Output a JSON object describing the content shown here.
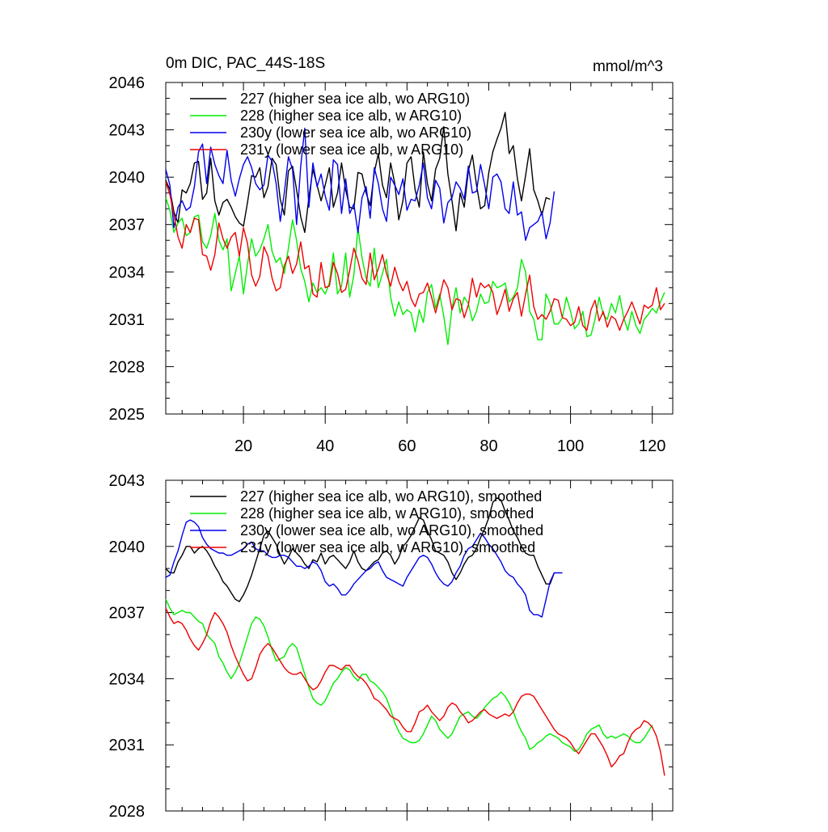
{
  "chart_data": [
    {
      "type": "line",
      "title": "0m DIC, PAC_44S-18S",
      "units": "mmol/m^3",
      "xlim": [
        1,
        125
      ],
      "ylim": [
        2025,
        2046
      ],
      "x_ticks": [
        20,
        40,
        60,
        80,
        100,
        120
      ],
      "y_ticks": [
        2025,
        2028,
        2031,
        2034,
        2037,
        2040,
        2043,
        2046
      ],
      "show_x_labels": true,
      "legend_position": "top-left",
      "series": [
        {
          "name": "227 (higher sea ice alb, wo ARG10)",
          "color": "#000000",
          "values": [
            2039.8,
            2039.2,
            2037.8,
            2037.1,
            2039.2,
            2039.0,
            2039.6,
            2040.9,
            2041.0,
            2038.6,
            2039.0,
            2041.2,
            2038.5,
            2037.6,
            2038.4,
            2038.6,
            2038.1,
            2037.5,
            2037.1,
            2036.9,
            2038.4,
            2040.1,
            2040.0,
            2040.6,
            2038.7,
            2039.4,
            2041.2,
            2040.8,
            2038.6,
            2037.6,
            2040.4,
            2040.7,
            2039.2,
            2037.5,
            2036.5,
            2038.7,
            2040.5,
            2039.5,
            2038.5,
            2039.5,
            2040.6,
            2038.1,
            2039.0,
            2040.9,
            2039.2,
            2038.1,
            2038.0,
            2040.3,
            2040.2,
            2039.0,
            2038.2,
            2040.3,
            2041.5,
            2039.5,
            2038.7,
            2040.9,
            2039.6,
            2037.3,
            2038.5,
            2040.9,
            2041.3,
            2039.2,
            2038.1,
            2041.6,
            2039.6,
            2038.5,
            2040.5,
            2041.2,
            2043.2,
            2040.2,
            2038.5,
            2036.6,
            2039.0,
            2038.1,
            2040.4,
            2041.4,
            2039.5,
            2038.0,
            2038.2,
            2040.3,
            2041.6,
            2042.4,
            2043.1,
            2044.1,
            2041.5,
            2042.0,
            2039.9,
            2038.5,
            2040.1,
            2041.8,
            2039.2,
            2038.5,
            2037.6,
            2038.7,
            2038.6
          ]
        },
        {
          "name": "228 (higher sea ice alb, w ARG10)",
          "color": "#00ee00",
          "values": [
            2038.7,
            2037.9,
            2036.5,
            2037.1,
            2037.4,
            2036.3,
            2036.5,
            2037.5,
            2037.6,
            2035.9,
            2035.5,
            2036.3,
            2037.7,
            2036.0,
            2035.4,
            2036.1,
            2032.8,
            2033.9,
            2035.0,
            2032.6,
            2034.5,
            2036.1,
            2035.0,
            2035.4,
            2036.1,
            2037.0,
            2035.3,
            2034.6,
            2034.9,
            2033.9,
            2035.5,
            2037.3,
            2036.0,
            2034.2,
            2033.4,
            2032.1,
            2033.3,
            2032.7,
            2033.0,
            2032.6,
            2033.3,
            2035.2,
            2032.6,
            2033.1,
            2035.2,
            2032.4,
            2033.8,
            2036.8,
            2034.9,
            2033.6,
            2033.1,
            2035.5,
            2033.0,
            2033.9,
            2034.8,
            2032.4,
            2031.2,
            2032.1,
            2031.3,
            2031.6,
            2031.4,
            2030.2,
            2031.6,
            2030.8,
            2032.7,
            2033.2,
            2031.7,
            2032.6,
            2031.2,
            2029.4,
            2031.7,
            2033.0,
            2031.4,
            2032.4,
            2032.0,
            2030.9,
            2031.5,
            2032.6,
            2032.0,
            2032.1,
            2033.4,
            2033.0,
            2033.1,
            2033.3,
            2032.1,
            2032.4,
            2033.0,
            2034.8,
            2034.0,
            2031.5,
            2031.0,
            2029.7,
            2029.7,
            2032.6,
            2032.0,
            2030.7,
            2030.7,
            2031.1,
            2032.4,
            2031.5,
            2030.4,
            2030.7,
            2031.5,
            2029.9,
            2030.0,
            2031.0,
            2032.4,
            2031.3,
            2031.0,
            2032.0,
            2031.4,
            2032.5,
            2031.1,
            2030.3,
            2031.5,
            2030.6,
            2030.1,
            2031.0,
            2031.3,
            2031.7,
            2031.4,
            2032.1,
            2032.7
          ]
        },
        {
          "name": "230y (lower sea ice alb, wo ARG10)",
          "color": "#0000ee",
          "values": [
            2040.5,
            2039.5,
            2036.8,
            2038.1,
            2038.5,
            2037.9,
            2038.1,
            2039.4,
            2041.6,
            2042.1,
            2039.6,
            2041.9,
            2040.8,
            2040.1,
            2039.6,
            2041.7,
            2039.8,
            2038.8,
            2039.9,
            2040.8,
            2041.3,
            2040.6,
            2039.6,
            2039.2,
            2039.5,
            2041.4,
            2041.0,
            2039.6,
            2037.2,
            2039.0,
            2041.3,
            2040.5,
            2037.0,
            2040.7,
            2043.1,
            2038.1,
            2040.9,
            2039.4,
            2040.2,
            2038.8,
            2037.9,
            2041.1,
            2040.8,
            2037.7,
            2039.9,
            2037.7,
            2038.3,
            2036.5,
            2038.7,
            2039.4,
            2037.4,
            2040.6,
            2039.6,
            2038.0,
            2037.2,
            2040.0,
            2039.5,
            2038.9,
            2039.9,
            2037.9,
            2038.6,
            2038.5,
            2039.5,
            2040.9,
            2038.7,
            2038.0,
            2039.8,
            2039.3,
            2037.1,
            2038.4,
            2038.7,
            2039.7,
            2039.3,
            2038.6,
            2040.7,
            2039.0,
            2039.1,
            2040.8,
            2039.5,
            2038.0,
            2040.0,
            2040.2,
            2039.7,
            2038.0,
            2037.7,
            2039.7,
            2037.6,
            2037.8,
            2036.0,
            2036.8,
            2037.0,
            2037.2,
            2037.8,
            2036.1,
            2037.1,
            2039.1
          ]
        },
        {
          "name": "231y (lower sea ice alb, w ARG10)",
          "color": "#ee0000",
          "values": [
            2039.7,
            2038.9,
            2037.6,
            2036.2,
            2035.5,
            2037.0,
            2036.5,
            2037.4,
            2037.3,
            2035.1,
            2035.0,
            2034.1,
            2035.1,
            2037.1,
            2036.1,
            2035.5,
            2036.2,
            2036.5,
            2035.0,
            2036.8,
            2035.8,
            2033.8,
            2033.1,
            2033.7,
            2035.6,
            2035.0,
            2033.6,
            2032.8,
            2033.0,
            2034.4,
            2035.0,
            2033.9,
            2034.5,
            2035.9,
            2034.2,
            2034.4,
            2032.6,
            2032.4,
            2034.6,
            2033.0,
            2033.1,
            2034.6,
            2033.9,
            2032.7,
            2032.9,
            2034.1,
            2035.5,
            2034.7,
            2033.6,
            2033.2,
            2035.2,
            2033.5,
            2034.2,
            2035.1,
            2033.9,
            2033.1,
            2034.3,
            2033.4,
            2032.8,
            2033.4,
            2032.3,
            2031.8,
            2032.6,
            2032.7,
            2033.3,
            2032.4,
            2031.4,
            2032.4,
            2033.5,
            2033.0,
            2031.6,
            2032.3,
            2032.2,
            2031.1,
            2031.9,
            2033.6,
            2032.4,
            2033.3,
            2033.0,
            2033.2,
            2032.7,
            2031.3,
            2032.0,
            2032.9,
            2031.5,
            2032.3,
            2032.7,
            2031.2,
            2032.6,
            2033.8,
            2031.8,
            2031.0,
            2031.3,
            2031.0,
            2031.5,
            2032.3,
            2032.2,
            2031.1,
            2031.0,
            2030.6,
            2030.8,
            2031.8,
            2030.6,
            2030.3,
            2031.6,
            2032.2,
            2030.9,
            2031.5,
            2030.5,
            2031.2,
            2031.0,
            2030.3,
            2031.0,
            2031.5,
            2032.1,
            2031.4,
            2030.7,
            2031.9,
            2031.7,
            2031.9,
            2033.0,
            2031.6,
            2032.0
          ]
        }
      ]
    },
    {
      "type": "line",
      "title": "",
      "units": "",
      "xlim": [
        1,
        125
      ],
      "ylim": [
        2028,
        2043
      ],
      "x_ticks": [
        20,
        40,
        60,
        80,
        100,
        120
      ],
      "y_ticks": [
        2028,
        2031,
        2034,
        2037,
        2040,
        2043
      ],
      "show_x_labels": false,
      "legend_position": "top-left",
      "series": [
        {
          "name": "227 (higher sea ice alb, wo ARG10), smoothed",
          "color": "#000000",
          "values": [
            2039.0,
            2038.8,
            2038.8,
            2039.3,
            2039.6,
            2040.0,
            2040.0,
            2039.7,
            2039.9,
            2040.0,
            2039.8,
            2039.5,
            2039.1,
            2038.8,
            2038.4,
            2038.2,
            2037.9,
            2037.6,
            2037.5,
            2037.8,
            2038.2,
            2038.7,
            2039.3,
            2039.9,
            2040.5,
            2040.7,
            2040.4,
            2040.1,
            2039.6,
            2039.2,
            2039.5,
            2039.9,
            2039.7,
            2039.5,
            2039.2,
            2039.0,
            2039.4,
            2039.3,
            2039.7,
            2039.2,
            2039.5,
            2039.6,
            2039.4,
            2039.2,
            2039.0,
            2039.3,
            2039.8,
            2039.3,
            2039.0,
            2038.9,
            2039.1,
            2039.3,
            2039.4,
            2039.7,
            2039.8,
            2039.6,
            2039.2,
            2039.5,
            2040.0,
            2040.2,
            2040.5,
            2040.9,
            2041.3,
            2041.2,
            2040.7,
            2040.3,
            2039.8,
            2039.7,
            2039.6,
            2039.3,
            2038.8,
            2038.5,
            2038.8,
            2039.2,
            2039.5,
            2039.6,
            2039.9,
            2040.4,
            2040.8,
            2041.3,
            2042.0,
            2042.2,
            2042.1,
            2041.6,
            2041.2,
            2040.7,
            2040.4,
            2040.0,
            2039.7,
            2039.6,
            2039.6,
            2039.1,
            2038.7,
            2038.3,
            2038.3,
            2038.8
          ]
        },
        {
          "name": "228 (higher sea ice alb, w ARG10), smoothed",
          "color": "#00ee00",
          "values": [
            2037.6,
            2037.2,
            2036.9,
            2037.0,
            2037.1,
            2037.0,
            2037.0,
            2036.8,
            2036.6,
            2036.5,
            2036.0,
            2035.8,
            2035.6,
            2035.0,
            2034.7,
            2034.3,
            2034.0,
            2034.3,
            2034.7,
            2035.3,
            2035.9,
            2036.5,
            2036.8,
            2036.7,
            2036.4,
            2035.9,
            2035.3,
            2034.8,
            2034.9,
            2035.0,
            2035.4,
            2035.6,
            2035.4,
            2034.8,
            2034.2,
            2033.6,
            2033.1,
            2032.9,
            2032.8,
            2033.0,
            2033.4,
            2033.8,
            2034.0,
            2034.3,
            2034.5,
            2034.4,
            2034.1,
            2033.9,
            2034.2,
            2034.2,
            2033.9,
            2033.8,
            2033.6,
            2033.4,
            2033.1,
            2032.6,
            2032.0,
            2031.6,
            2031.3,
            2031.2,
            2031.1,
            2031.1,
            2031.2,
            2031.5,
            2031.9,
            2032.3,
            2032.1,
            2031.7,
            2031.5,
            2031.3,
            2031.5,
            2031.9,
            2032.3,
            2032.4,
            2032.5,
            2032.3,
            2032.2,
            2032.4,
            2032.7,
            2032.9,
            2033.1,
            2033.2,
            2033.4,
            2033.2,
            2032.9,
            2032.5,
            2032.0,
            2031.6,
            2031.3,
            2030.8,
            2030.9,
            2031.1,
            2031.2,
            2031.4,
            2031.5,
            2031.4,
            2031.3,
            2031.1,
            2031.0,
            2030.9,
            2030.7,
            2030.8,
            2031.1,
            2031.5,
            2031.7,
            2031.8,
            2031.9,
            2031.5,
            2031.3,
            2031.4,
            2031.3,
            2031.4,
            2031.5,
            2031.4,
            2031.2,
            2031.1,
            2031.1,
            2031.3,
            2031.6,
            2031.9
          ]
        },
        {
          "name": "230y (lower sea ice alb, wo ARG10), smoothed",
          "color": "#0000ee",
          "values": [
            2038.6,
            2038.7,
            2039.3,
            2039.8,
            2040.5,
            2041.1,
            2041.2,
            2041.1,
            2040.9,
            2040.4,
            2040.1,
            2039.9,
            2039.8,
            2039.7,
            2039.7,
            2039.6,
            2039.6,
            2039.7,
            2039.8,
            2039.9,
            2040.1,
            2040.2,
            2039.9,
            2039.8,
            2039.8,
            2039.6,
            2039.5,
            2039.5,
            2039.6,
            2039.6,
            2039.5,
            2039.3,
            2039.1,
            2039.1,
            2039.0,
            2039.1,
            2039.3,
            2039.2,
            2038.9,
            2038.4,
            2038.2,
            2038.3,
            2038.1,
            2037.8,
            2037.8,
            2038.0,
            2038.3,
            2038.5,
            2038.7,
            2038.9,
            2039.0,
            2039.2,
            2039.3,
            2038.9,
            2038.6,
            2038.5,
            2038.4,
            2038.3,
            2038.2,
            2038.6,
            2038.9,
            2039.2,
            2039.5,
            2039.6,
            2039.5,
            2039.2,
            2038.8,
            2038.5,
            2038.3,
            2038.2,
            2038.4,
            2038.8,
            2039.1,
            2039.6,
            2039.9,
            2040.0,
            2040.3,
            2040.6,
            2040.4,
            2040.1,
            2039.9,
            2039.6,
            2039.3,
            2038.9,
            2038.7,
            2038.6,
            2038.3,
            2038.1,
            2037.8,
            2037.1,
            2036.9,
            2036.9,
            2036.8,
            2037.6,
            2038.4,
            2038.8,
            2038.8,
            2038.8
          ]
        },
        {
          "name": "231y (lower sea ice alb, w ARG10), smoothed",
          "color": "#ee0000",
          "values": [
            2037.2,
            2036.8,
            2036.5,
            2036.6,
            2036.5,
            2036.2,
            2035.8,
            2035.5,
            2035.3,
            2035.6,
            2036.0,
            2036.6,
            2037.0,
            2036.8,
            2036.5,
            2036.1,
            2035.5,
            2035.0,
            2034.6,
            2034.2,
            2033.9,
            2034.0,
            2034.5,
            2035.1,
            2035.4,
            2035.6,
            2035.4,
            2035.1,
            2034.8,
            2034.5,
            2034.3,
            2034.2,
            2034.2,
            2034.3,
            2034.0,
            2033.7,
            2033.5,
            2033.6,
            2033.9,
            2034.3,
            2034.6,
            2034.6,
            2034.5,
            2034.4,
            2034.6,
            2034.6,
            2034.3,
            2034.1,
            2034.0,
            2033.8,
            2033.5,
            2033.1,
            2033.0,
            2032.8,
            2032.6,
            2032.3,
            2032.2,
            2032.1,
            2031.8,
            2031.6,
            2031.6,
            2032.0,
            2032.5,
            2032.6,
            2032.8,
            2032.5,
            2032.3,
            2032.1,
            2032.3,
            2032.7,
            2032.9,
            2032.8,
            2032.5,
            2032.3,
            2032.0,
            2032.1,
            2032.3,
            2032.5,
            2032.6,
            2032.4,
            2032.3,
            2032.2,
            2032.3,
            2032.4,
            2032.3,
            2032.5,
            2032.9,
            2033.2,
            2033.3,
            2033.3,
            2033.2,
            2032.9,
            2032.6,
            2032.3,
            2032.0,
            2031.7,
            2031.5,
            2031.4,
            2031.3,
            2031.1,
            2030.8,
            2030.6,
            2030.9,
            2031.2,
            2031.5,
            2031.5,
            2031.2,
            2030.9,
            2030.5,
            2030.0,
            2030.2,
            2030.5,
            2030.6,
            2031.1,
            2031.5,
            2031.7,
            2031.8,
            2032.1,
            2032.0,
            2031.8,
            2031.4,
            2030.7,
            2029.6
          ]
        }
      ]
    }
  ]
}
